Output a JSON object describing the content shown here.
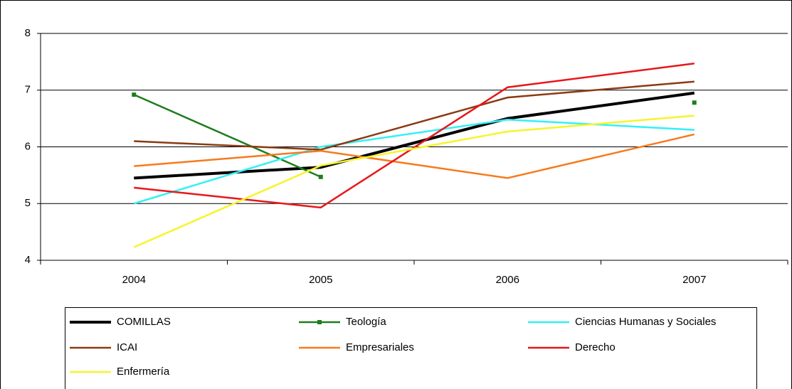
{
  "chart_data": {
    "type": "line",
    "categories": [
      "2004",
      "2005",
      "2006",
      "2007"
    ],
    "ylim": [
      4,
      8
    ],
    "yticks": [
      4,
      5,
      6,
      7,
      8
    ],
    "grid": true,
    "legend": "bottom",
    "series": [
      {
        "name": "COMILLAS",
        "color": "#000000",
        "width": 4,
        "values": [
          5.45,
          5.64,
          6.5,
          6.95
        ]
      },
      {
        "name": "Teología",
        "color": "#1e7d1e",
        "width": 2.5,
        "marker": "square",
        "values": [
          6.92,
          5.47,
          null,
          6.78
        ]
      },
      {
        "name": "Ciencias Humanas y Sociales",
        "color": "#33f0f5",
        "width": 2.5,
        "values": [
          5.0,
          6.0,
          6.48,
          6.3
        ]
      },
      {
        "name": "ICAI",
        "color": "#8b3a12",
        "width": 2.5,
        "values": [
          6.1,
          5.95,
          6.87,
          7.15
        ]
      },
      {
        "name": "Empresariales",
        "color": "#f77a1c",
        "width": 2.5,
        "values": [
          5.66,
          5.93,
          5.45,
          6.22
        ]
      },
      {
        "name": "Derecho",
        "color": "#e8161a",
        "width": 2.5,
        "values": [
          5.28,
          4.93,
          7.05,
          7.47
        ]
      },
      {
        "name": "Enfermería",
        "color": "#f5f52a",
        "width": 2.5,
        "values": [
          4.23,
          5.67,
          6.27,
          6.55
        ]
      }
    ]
  }
}
